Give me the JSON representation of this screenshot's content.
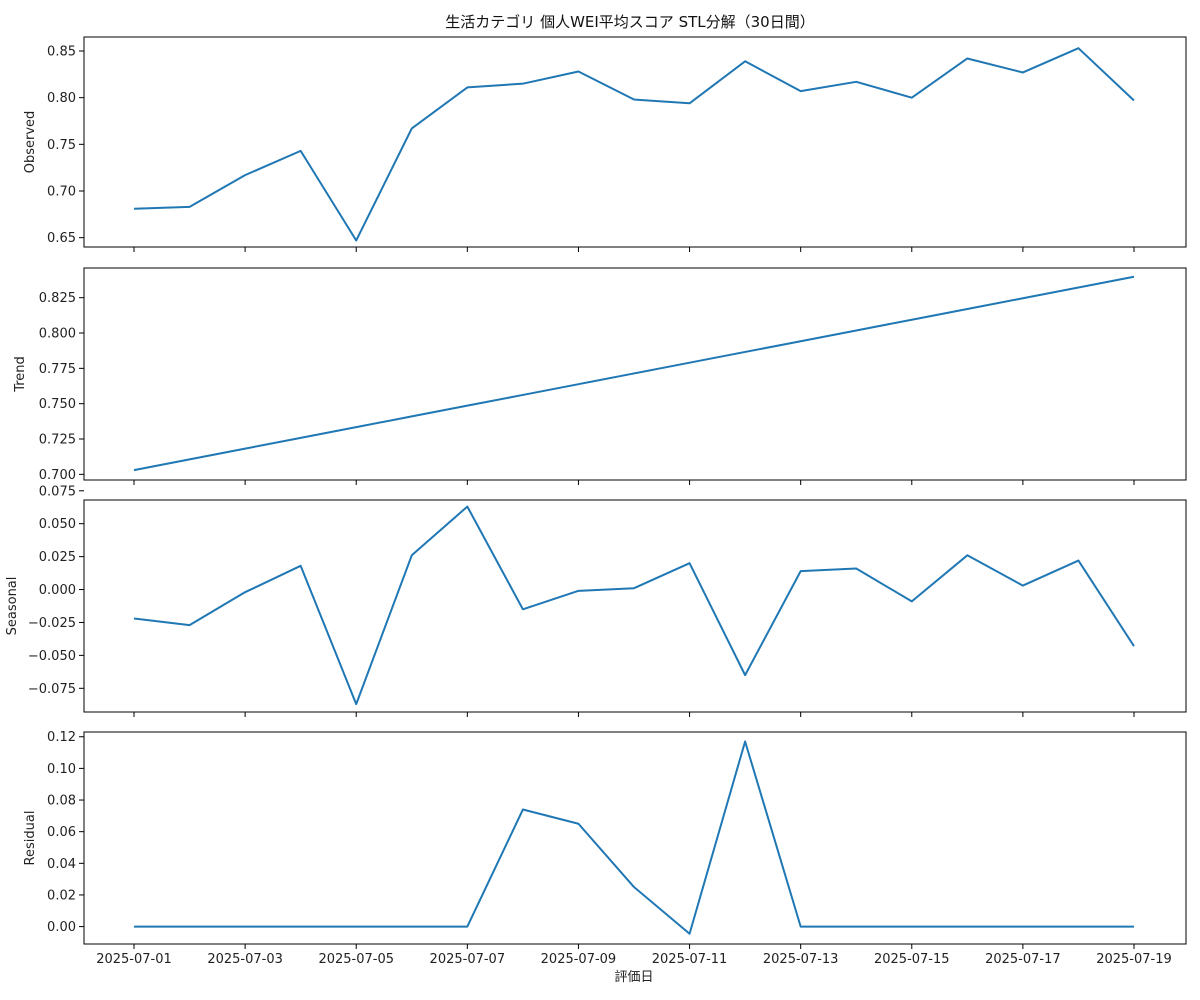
{
  "chart_data": {
    "type": "line",
    "title": "生活カテゴリ 個人WEI平均スコア STL分解（30日間）",
    "xlabel": "評価日",
    "x": [
      "2025-07-01",
      "2025-07-02",
      "2025-07-03",
      "2025-07-04",
      "2025-07-05",
      "2025-07-06",
      "2025-07-07",
      "2025-07-08",
      "2025-07-09",
      "2025-07-10",
      "2025-07-11",
      "2025-07-12",
      "2025-07-13",
      "2025-07-14",
      "2025-07-15",
      "2025-07-16",
      "2025-07-17",
      "2025-07-18",
      "2025-07-19"
    ],
    "xticks": [
      "2025-07-01",
      "2025-07-03",
      "2025-07-05",
      "2025-07-07",
      "2025-07-09",
      "2025-07-11",
      "2025-07-13",
      "2025-07-15",
      "2025-07-17",
      "2025-07-19"
    ],
    "line_color": "#1f77b4",
    "grid": false,
    "panels": [
      {
        "name": "observed",
        "ylabel": "Observed",
        "ylim": [
          0.64,
          0.865
        ],
        "yticks": [
          "0.65",
          "0.70",
          "0.75",
          "0.80",
          "0.85"
        ],
        "values": [
          0.681,
          0.683,
          0.717,
          0.743,
          0.647,
          0.767,
          0.811,
          0.815,
          0.828,
          0.798,
          0.794,
          0.839,
          0.807,
          0.817,
          0.8,
          0.842,
          0.827,
          0.853,
          0.797
        ]
      },
      {
        "name": "trend",
        "ylabel": "Trend",
        "ylim": [
          0.696,
          0.846
        ],
        "yticks": [
          "0.700",
          "0.725",
          "0.750",
          "0.775",
          "0.800",
          "0.825"
        ],
        "values": [
          0.703,
          0.7106,
          0.7182,
          0.7258,
          0.7334,
          0.741,
          0.7486,
          0.7562,
          0.7638,
          0.7714,
          0.779,
          0.7866,
          0.7942,
          0.8018,
          0.8094,
          0.817,
          0.8246,
          0.8322,
          0.8398
        ]
      },
      {
        "name": "seasonal",
        "ylabel": "Seasonal",
        "ylim": [
          -0.093,
          0.068
        ],
        "yticks": [
          "0.075",
          "0.050",
          "0.025",
          "0.000",
          "−0.025",
          "−0.050",
          "−0.075"
        ],
        "ytick_values": [
          0.075,
          0.05,
          0.025,
          0.0,
          -0.025,
          -0.05,
          -0.075
        ],
        "values": [
          -0.022,
          -0.027,
          -0.002,
          0.018,
          -0.087,
          0.026,
          0.063,
          -0.015,
          -0.001,
          0.001,
          0.02,
          -0.065,
          0.014,
          0.016,
          -0.009,
          0.026,
          0.003,
          0.022,
          -0.043
        ]
      },
      {
        "name": "residual",
        "ylabel": "Residual",
        "ylim": [
          -0.011,
          0.123
        ],
        "yticks": [
          "0.00",
          "0.02",
          "0.04",
          "0.06",
          "0.08",
          "0.10",
          "0.12"
        ],
        "values": [
          0.0,
          0.0,
          0.0,
          0.0,
          0.0,
          0.0,
          0.0,
          0.074,
          0.065,
          0.025,
          -0.0045,
          0.117,
          0.0,
          0.0,
          0.0,
          0.0,
          0.0,
          0.0,
          0.0
        ]
      }
    ]
  }
}
